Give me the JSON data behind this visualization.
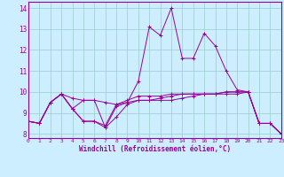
{
  "xlabel": "Windchill (Refroidissement éolien,°C)",
  "x_values": [
    0,
    1,
    2,
    3,
    4,
    5,
    6,
    7,
    8,
    9,
    10,
    11,
    12,
    13,
    14,
    15,
    16,
    17,
    18,
    19,
    20,
    21,
    22,
    23
  ],
  "series": [
    [
      8.6,
      8.5,
      9.5,
      9.9,
      9.2,
      8.6,
      8.6,
      8.4,
      9.4,
      9.5,
      9.6,
      9.6,
      9.6,
      9.6,
      9.7,
      9.8,
      9.9,
      9.9,
      10.0,
      10.0,
      10.0,
      8.5,
      8.5,
      8.0
    ],
    [
      8.6,
      8.5,
      9.5,
      9.9,
      9.7,
      9.6,
      9.6,
      8.3,
      9.3,
      9.5,
      10.5,
      13.1,
      12.7,
      14.0,
      11.6,
      11.6,
      12.8,
      12.2,
      11.0,
      10.1,
      10.0,
      8.5,
      8.5,
      8.0
    ],
    [
      8.6,
      8.5,
      9.5,
      9.9,
      9.2,
      9.6,
      9.6,
      9.5,
      9.4,
      9.6,
      9.8,
      9.8,
      9.8,
      9.9,
      9.9,
      9.9,
      9.9,
      9.9,
      10.0,
      10.0,
      10.0,
      8.5,
      8.5,
      8.0
    ],
    [
      8.6,
      8.5,
      9.5,
      9.9,
      9.2,
      8.6,
      8.6,
      8.3,
      8.8,
      9.4,
      9.6,
      9.6,
      9.7,
      9.8,
      9.9,
      9.9,
      9.9,
      9.9,
      9.9,
      9.9,
      10.0,
      8.5,
      8.5,
      8.0
    ]
  ],
  "line_color": "#990099",
  "bg_color": "#cceeff",
  "grid_color": "#99cccc",
  "ylim": [
    7.8,
    14.3
  ],
  "yticks": [
    8,
    9,
    10,
    11,
    12,
    13,
    14
  ],
  "xlim": [
    0,
    23
  ]
}
